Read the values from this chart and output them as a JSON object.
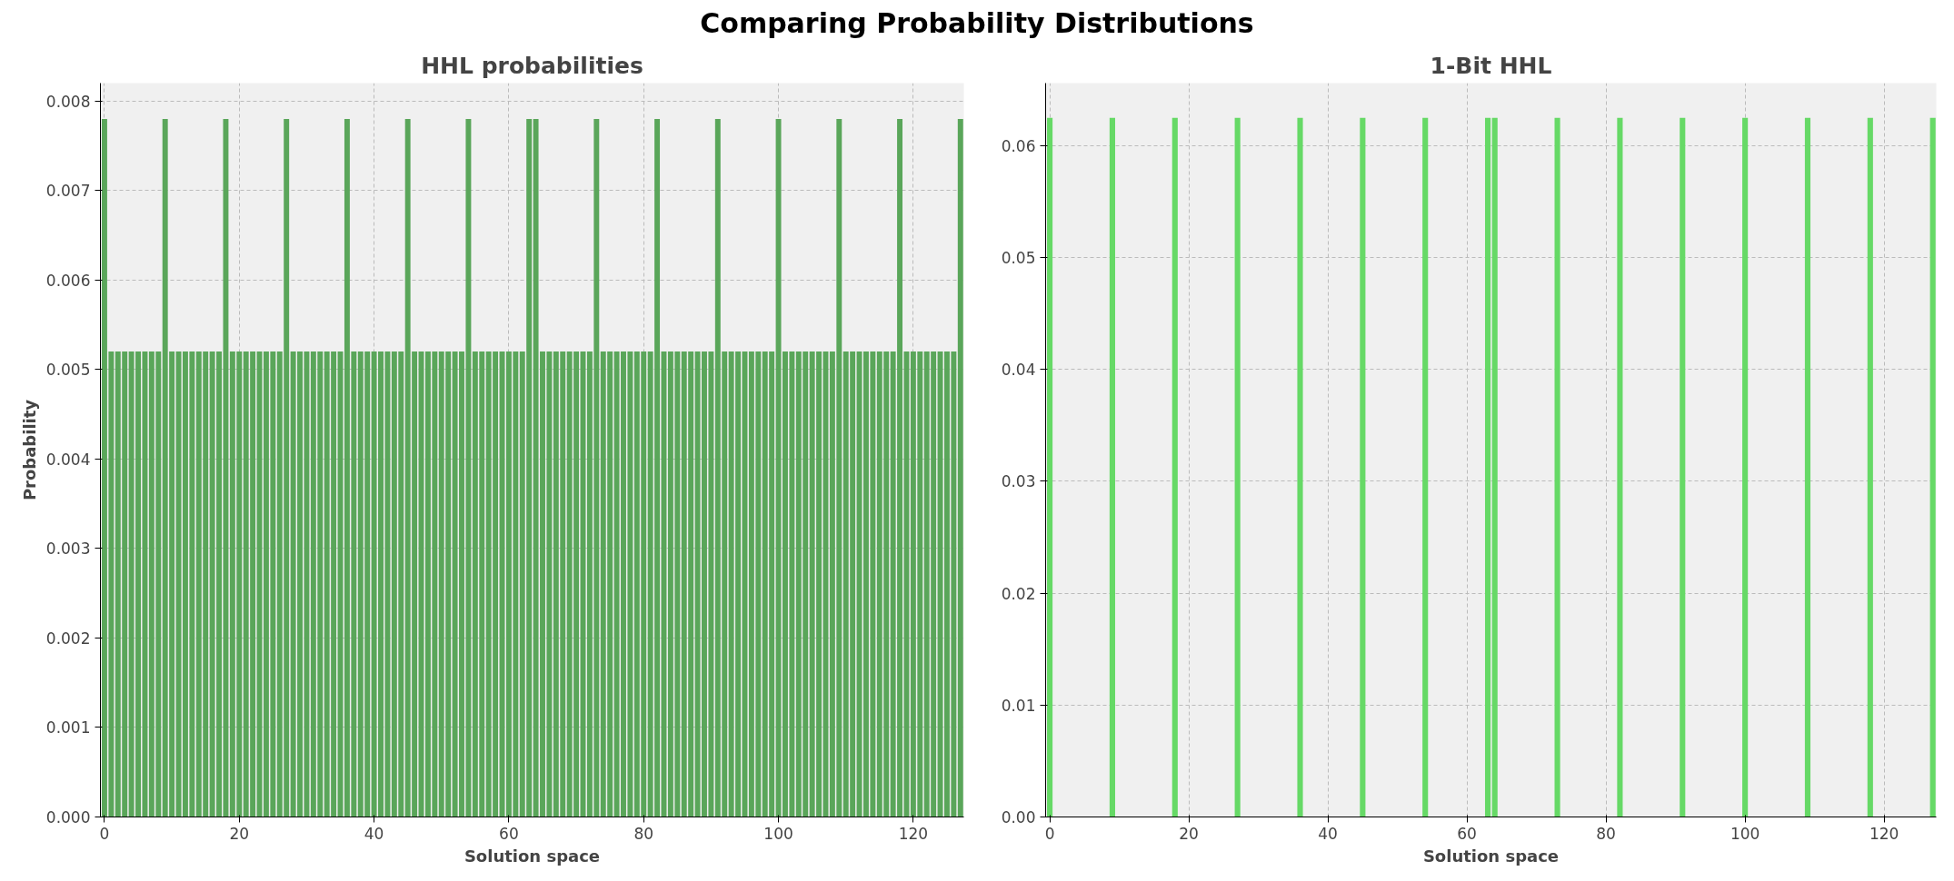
{
  "chart_data": [
    {
      "type": "bar",
      "title": "HHL probabilities",
      "xlabel": "Solution space",
      "ylabel": "Probability",
      "annotations": [
        "Comparing Probability Distributions"
      ],
      "x": [
        0,
        1,
        2,
        3,
        4,
        5,
        6,
        7,
        8,
        9,
        10,
        11,
        12,
        13,
        14,
        15,
        16,
        17,
        18,
        19,
        20,
        21,
        22,
        23,
        24,
        25,
        26,
        27,
        28,
        29,
        30,
        31,
        32,
        33,
        34,
        35,
        36,
        37,
        38,
        39,
        40,
        41,
        42,
        43,
        44,
        45,
        46,
        47,
        48,
        49,
        50,
        51,
        52,
        53,
        54,
        55,
        56,
        57,
        58,
        59,
        60,
        61,
        62,
        63,
        64,
        65,
        66,
        67,
        68,
        69,
        70,
        71,
        72,
        73,
        74,
        75,
        76,
        77,
        78,
        79,
        80,
        81,
        82,
        83,
        84,
        85,
        86,
        87,
        88,
        89,
        90,
        91,
        92,
        93,
        94,
        95,
        96,
        97,
        98,
        99,
        100,
        101,
        102,
        103,
        104,
        105,
        106,
        107,
        108,
        109,
        110,
        111,
        112,
        113,
        114,
        115,
        116,
        117,
        118,
        119,
        120,
        121,
        122,
        123,
        124,
        125,
        126,
        127
      ],
      "series": [
        {
          "color": "#5aa65a",
          "values": [
            0.0078,
            0.0052,
            0.0052,
            0.0052,
            0.0052,
            0.0052,
            0.0052,
            0.0052,
            0.0052,
            0.0078,
            0.0052,
            0.0052,
            0.0052,
            0.0052,
            0.0052,
            0.0052,
            0.0052,
            0.0052,
            0.0078,
            0.0052,
            0.0052,
            0.0052,
            0.0052,
            0.0052,
            0.0052,
            0.0052,
            0.0052,
            0.0078,
            0.0052,
            0.0052,
            0.0052,
            0.0052,
            0.0052,
            0.0052,
            0.0052,
            0.0052,
            0.0078,
            0.0052,
            0.0052,
            0.0052,
            0.0052,
            0.0052,
            0.0052,
            0.0052,
            0.0052,
            0.0078,
            0.0052,
            0.0052,
            0.0052,
            0.0052,
            0.0052,
            0.0052,
            0.0052,
            0.0052,
            0.0078,
            0.0052,
            0.0052,
            0.0052,
            0.0052,
            0.0052,
            0.0052,
            0.0052,
            0.0052,
            0.0078,
            0.0078,
            0.0052,
            0.0052,
            0.0052,
            0.0052,
            0.0052,
            0.0052,
            0.0052,
            0.0052,
            0.0078,
            0.0052,
            0.0052,
            0.0052,
            0.0052,
            0.0052,
            0.0052,
            0.0052,
            0.0052,
            0.0078,
            0.0052,
            0.0052,
            0.0052,
            0.0052,
            0.0052,
            0.0052,
            0.0052,
            0.0052,
            0.0078,
            0.0052,
            0.0052,
            0.0052,
            0.0052,
            0.0052,
            0.0052,
            0.0052,
            0.0052,
            0.0078,
            0.0052,
            0.0052,
            0.0052,
            0.0052,
            0.0052,
            0.0052,
            0.0052,
            0.0052,
            0.0078,
            0.0052,
            0.0052,
            0.0052,
            0.0052,
            0.0052,
            0.0052,
            0.0052,
            0.0052,
            0.0078,
            0.0052,
            0.0052,
            0.0052,
            0.0052,
            0.0052,
            0.0052,
            0.0052,
            0.0052,
            0.0078
          ]
        }
      ],
      "xlim": [
        -0.6,
        127.5
      ],
      "xticks": [
        0,
        20,
        40,
        60,
        80,
        100,
        120
      ],
      "ylim": [
        0,
        0.0082
      ],
      "yticks": [
        {
          "value": 0,
          "label": "0.000"
        },
        {
          "value": 0.001,
          "label": "0.001"
        },
        {
          "value": 0.002,
          "label": "0.002"
        },
        {
          "value": 0.003,
          "label": "0.003"
        },
        {
          "value": 0.004,
          "label": "0.004"
        },
        {
          "value": 0.005,
          "label": "0.005"
        },
        {
          "value": 0.006,
          "label": "0.006"
        },
        {
          "value": 0.007,
          "label": "0.007"
        },
        {
          "value": 0.008,
          "label": "0.008"
        }
      ],
      "grid": true,
      "line_style": "dashed"
    },
    {
      "type": "bar",
      "title": "1-Bit HHL",
      "xlabel": "Solution space",
      "x": [
        0,
        9,
        18,
        27,
        36,
        45,
        54,
        63,
        64,
        73,
        82,
        91,
        100,
        109,
        118,
        127
      ],
      "series": [
        {
          "color": "#66d966",
          "values": [
            0.0625,
            0.0625,
            0.0625,
            0.0625,
            0.0625,
            0.0625,
            0.0625,
            0.0625,
            0.0625,
            0.0625,
            0.0625,
            0.0625,
            0.0625,
            0.0625,
            0.0625,
            0.0625
          ]
        }
      ],
      "xlim": [
        -0.6,
        127.5
      ],
      "xticks": [
        0,
        20,
        40,
        60,
        80,
        100,
        120
      ],
      "ylim": [
        0,
        0.0656
      ],
      "yticks": [
        {
          "value": 0,
          "label": "0.00"
        },
        {
          "value": 0.01,
          "label": "0.01"
        },
        {
          "value": 0.02,
          "label": "0.02"
        },
        {
          "value": 0.03,
          "label": "0.03"
        },
        {
          "value": 0.04,
          "label": "0.04"
        },
        {
          "value": 0.05,
          "label": "0.05"
        },
        {
          "value": 0.06,
          "label": "0.06"
        }
      ],
      "grid": true,
      "line_style": "dashed"
    }
  ]
}
